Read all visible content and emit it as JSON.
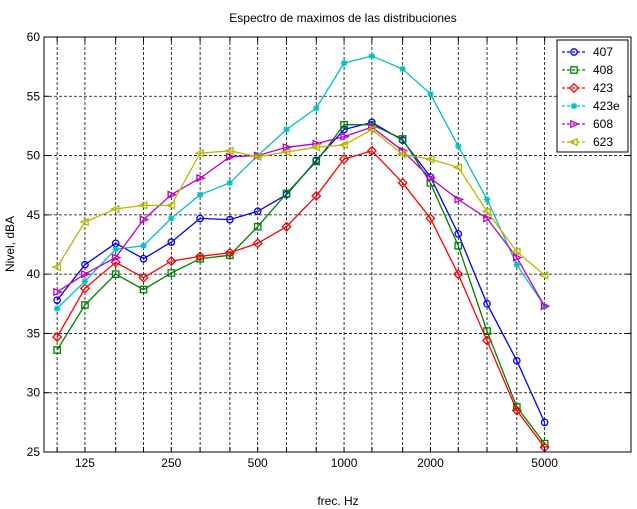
{
  "chart_data": {
    "type": "line",
    "title": "Espectro de maximos de las distribuciones",
    "xlabel": "frec. Hz",
    "ylabel": "Nivel, dBA",
    "x_scale": "log",
    "xlim": [
      90,
      10000
    ],
    "ylim": [
      25,
      60
    ],
    "grid": true,
    "legend_position": "top-right",
    "x": [
      100,
      125,
      160,
      200,
      250,
      315,
      400,
      500,
      630,
      800,
      1000,
      1250,
      1600,
      2000,
      2500,
      3150,
      4000,
      5000
    ],
    "x_tick_values": [
      125,
      250,
      500,
      1000,
      2000,
      5000
    ],
    "x_tick_labels": [
      "125",
      "250",
      "500",
      "1000",
      "2000",
      "5000"
    ],
    "y_tick_values": [
      25,
      30,
      35,
      40,
      45,
      50,
      55,
      60
    ],
    "y_tick_labels": [
      "25",
      "30",
      "35",
      "40",
      "45",
      "50",
      "55",
      "60"
    ],
    "series": [
      {
        "name": "407",
        "color": "#0000ff",
        "marker": "circle",
        "values": [
          37.8,
          40.8,
          42.6,
          41.3,
          42.7,
          44.7,
          44.6,
          45.3,
          46.7,
          49.6,
          52.2,
          52.8,
          51.3,
          48.2,
          43.4,
          37.5,
          32.7,
          27.5
        ]
      },
      {
        "name": "408",
        "color": "#008000",
        "marker": "square",
        "values": [
          33.6,
          37.4,
          40.0,
          38.7,
          40.1,
          41.3,
          41.6,
          44.0,
          46.8,
          49.5,
          52.6,
          52.6,
          51.4,
          47.7,
          42.4,
          35.2,
          28.8,
          25.7
        ]
      },
      {
        "name": "423",
        "color": "#ff0000",
        "marker": "diamond",
        "values": [
          34.7,
          38.8,
          41.0,
          39.7,
          41.1,
          41.5,
          41.8,
          42.6,
          44.0,
          46.6,
          49.7,
          50.4,
          47.7,
          44.7,
          40.0,
          34.4,
          28.5,
          25.4
        ]
      },
      {
        "name": "423e",
        "color": "#00c0c0",
        "marker": "star",
        "values": [
          37.1,
          39.4,
          42.1,
          42.4,
          44.7,
          46.7,
          47.7,
          50.0,
          52.2,
          54.0,
          57.8,
          58.4,
          57.3,
          55.2,
          50.8,
          46.3,
          40.8,
          37.3
        ]
      },
      {
        "name": "608",
        "color": "#c000c0",
        "marker": "triangle-right",
        "values": [
          38.5,
          40.0,
          41.4,
          44.6,
          46.7,
          48.1,
          49.9,
          50.0,
          50.7,
          51.0,
          51.6,
          52.4,
          50.4,
          48.1,
          46.3,
          44.7,
          41.4,
          37.3
        ]
      },
      {
        "name": "623",
        "color": "#b8b800",
        "marker": "triangle-left",
        "values": [
          40.6,
          44.4,
          45.5,
          45.8,
          45.8,
          50.2,
          50.4,
          49.9,
          50.3,
          50.7,
          50.9,
          52.2,
          50.1,
          49.7,
          49.0,
          45.3,
          41.9,
          39.9
        ]
      }
    ]
  }
}
